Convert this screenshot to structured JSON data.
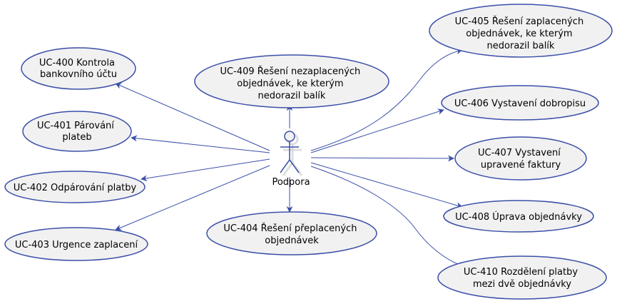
{
  "actor": {
    "name": "Podpora"
  },
  "use_cases": [
    {
      "id": "uc400",
      "lines": [
        "UC-400 Kontrola",
        "bankovního účtu"
      ]
    },
    {
      "id": "uc401",
      "lines": [
        "UC-401 Párování",
        "plateb"
      ]
    },
    {
      "id": "uc402",
      "lines": [
        "UC-402 Odpárování platby"
      ]
    },
    {
      "id": "uc403",
      "lines": [
        "UC-403 Urgence zaplacení"
      ]
    },
    {
      "id": "uc409",
      "lines": [
        "UC-409 Řešení nezaplacených",
        "objednávek, ke kterým",
        "nedorazil balík"
      ]
    },
    {
      "id": "uc404",
      "lines": [
        "UC-404 Řešení přeplacených",
        "objednávek"
      ]
    },
    {
      "id": "uc405",
      "lines": [
        "UC-405 Řešení zaplacených",
        "objednávek, ke kterým",
        "nedorazil balík"
      ]
    },
    {
      "id": "uc406",
      "lines": [
        "UC-406 Vystavení dobropisu"
      ]
    },
    {
      "id": "uc407",
      "lines": [
        "UC-407 Vystavení",
        "upravené faktury"
      ]
    },
    {
      "id": "uc408",
      "lines": [
        "UC-408 Úprava objednávky"
      ]
    },
    {
      "id": "uc410",
      "lines": [
        "UC-410 Rozdělení platby",
        "mezi dvě objednávky"
      ]
    }
  ],
  "colors": {
    "stroke": "#3b4fa8",
    "fill": "#f1f1f1",
    "text": "#000000"
  }
}
